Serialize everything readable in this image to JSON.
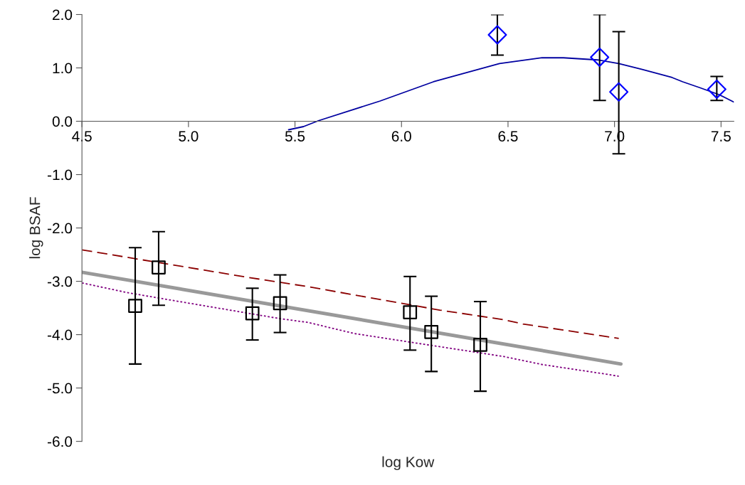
{
  "chart_data": {
    "type": "scatter",
    "xlabel": "log Kow",
    "ylabel": "log BSAF",
    "xlim": [
      4.5,
      7.56
    ],
    "ylim": [
      -6.0,
      2.0
    ],
    "xticks": [
      {
        "value": 4.5,
        "label": "4.5"
      },
      {
        "value": 5.0,
        "label": "5.0"
      },
      {
        "value": 5.5,
        "label": "5.5"
      },
      {
        "value": 6.0,
        "label": "6.0"
      },
      {
        "value": 6.5,
        "label": "6.5"
      },
      {
        "value": 7.0,
        "label": "7.0"
      },
      {
        "value": 7.5,
        "label": "7.5"
      }
    ],
    "yticks": [
      {
        "value": -6.0,
        "label": "-6.0"
      },
      {
        "value": -5.0,
        "label": "-5.0"
      },
      {
        "value": -4.0,
        "label": "-4.0"
      },
      {
        "value": -3.0,
        "label": "-3.0"
      },
      {
        "value": -2.0,
        "label": "-2.0"
      },
      {
        "value": -1.0,
        "label": "-1.0"
      },
      {
        "value": 0.0,
        "label": "0.0"
      },
      {
        "value": 1.0,
        "label": "1.0"
      },
      {
        "value": 2.0,
        "label": "2.0"
      }
    ],
    "grid": false,
    "legend": false,
    "series": [
      {
        "type": "line",
        "color": "#0000a0",
        "line_style": "solid",
        "x": [
          5.47,
          5.54,
          5.61,
          5.9,
          6.15,
          6.46,
          6.66,
          6.76,
          6.92,
          7.02,
          7.13,
          7.27,
          7.32,
          7.4,
          7.49,
          7.56
        ],
        "values": [
          -0.16,
          -0.1,
          0.01,
          0.38,
          0.74,
          1.08,
          1.19,
          1.19,
          1.15,
          1.08,
          0.97,
          0.82,
          0.74,
          0.63,
          0.5,
          0.36
        ]
      },
      {
        "type": "line",
        "color": "#8b0000",
        "line_style": "dashed",
        "x": [
          4.5,
          5.27,
          5.56,
          6.18,
          6.48,
          6.57,
          7.02
        ],
        "values": [
          -2.41,
          -2.92,
          -3.1,
          -3.54,
          -3.72,
          -3.8,
          -4.07
        ]
      },
      {
        "type": "line",
        "color": "#800080",
        "line_style": "dotted",
        "x": [
          4.5,
          4.71,
          4.87,
          5.43,
          5.56,
          5.78,
          6.48,
          6.66,
          6.96,
          7.02
        ],
        "values": [
          -3.03,
          -3.21,
          -3.32,
          -3.7,
          -3.77,
          -3.98,
          -4.41,
          -4.56,
          -4.74,
          -4.78
        ]
      },
      {
        "type": "line",
        "color": "#999999",
        "line_style": "solid",
        "x": [
          4.5,
          7.03
        ],
        "values": [
          -2.83,
          -4.55
        ]
      },
      {
        "color": "#0000ff",
        "marker": "diamond",
        "x": [
          6.45,
          6.93,
          7.02,
          7.48
        ],
        "values": [
          1.62,
          1.2,
          0.55,
          0.6
        ],
        "errors": [
          [
            1.24,
            2.0
          ],
          [
            0.39,
            2.0
          ],
          [
            -0.61,
            1.68
          ],
          [
            0.39,
            0.84
          ]
        ]
      },
      {
        "color": "#000000",
        "marker": "square",
        "x": [
          4.75,
          4.86,
          5.3,
          5.43,
          6.04,
          6.14,
          6.37
        ],
        "values": [
          -3.46,
          -2.74,
          -3.6,
          -3.41,
          -3.58,
          -3.95,
          -4.19
        ],
        "errors": [
          [
            -4.55,
            -2.37
          ],
          [
            -3.45,
            -2.07
          ],
          [
            -4.1,
            -3.13
          ],
          [
            -3.96,
            -2.88
          ],
          [
            -4.29,
            -2.91
          ],
          [
            -4.69,
            -3.28
          ],
          [
            -5.06,
            -3.38
          ]
        ]
      }
    ]
  }
}
